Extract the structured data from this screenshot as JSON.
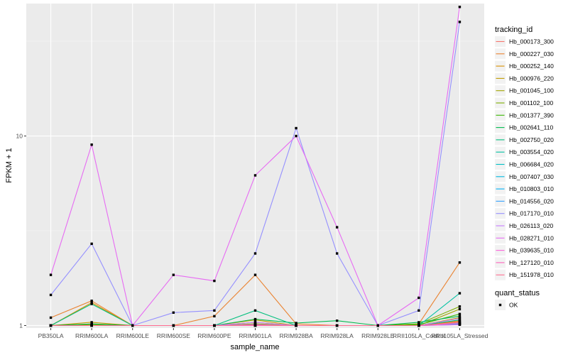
{
  "chart_data": {
    "type": "line",
    "xlabel": "sample_name",
    "ylabel": "FPKM + 1",
    "y_scale": "log10",
    "ylim": [
      0.97,
      50
    ],
    "y_ticks": [
      1,
      10
    ],
    "y_tick_labels": [
      "1",
      "10"
    ],
    "grid": true,
    "legend_placement": "right",
    "categories": [
      "PB350LA",
      "RRIM600LA",
      "RRIM600LE",
      "RRIM600SE",
      "RRIM600PE",
      "RRIM901LA",
      "RRIM928BA",
      "RRIM928LA",
      "RRIM928LE",
      "RRII105LA_Control",
      "RRII105LA_Stressed"
    ],
    "category_labels": [
      "PB350LA",
      "RRIM600LA",
      "RRIM600LE",
      "RRIM600SE",
      "RRIM600PE",
      "RRIM901LA",
      "RRIM928BA",
      "RRIM928LA",
      "RRIM928LE",
      "RRII105LA_Control",
      "RRII105LA_Stressed"
    ],
    "legend_title": "tracking_id",
    "series": [
      {
        "name": "Hb_000173_300",
        "color": "#F8766D",
        "values": [
          1.0,
          1.02,
          1.0,
          1.0,
          1.0,
          1.02,
          1.0,
          1.0,
          1.0,
          1.0,
          1.06
        ]
      },
      {
        "name": "Hb_000227_030",
        "color": "#EA8331",
        "values": [
          1.1,
          1.35,
          1.0,
          1.0,
          1.12,
          1.85,
          1.02,
          1.0,
          1.0,
          1.02,
          2.15
        ]
      },
      {
        "name": "Hb_000252_140",
        "color": "#D89000",
        "values": [
          1.0,
          1.32,
          1.0,
          1.0,
          1.0,
          1.04,
          1.0,
          1.0,
          1.0,
          1.0,
          1.05
        ]
      },
      {
        "name": "Hb_000976_220",
        "color": "#C09B00",
        "values": [
          1.0,
          1.04,
          1.0,
          1.0,
          1.0,
          1.07,
          1.0,
          1.0,
          1.0,
          1.0,
          1.1
        ]
      },
      {
        "name": "Hb_001045_100",
        "color": "#A3A500",
        "values": [
          1.0,
          1.0,
          1.0,
          1.0,
          1.0,
          1.01,
          1.0,
          1.0,
          1.0,
          1.0,
          1.22
        ]
      },
      {
        "name": "Hb_001102_100",
        "color": "#7CAE00",
        "values": [
          1.0,
          1.01,
          1.0,
          1.0,
          1.0,
          1.02,
          1.0,
          1.0,
          1.0,
          1.02,
          1.26
        ]
      },
      {
        "name": "Hb_001377_390",
        "color": "#39B600",
        "values": [
          1.0,
          1.0,
          1.0,
          1.0,
          1.0,
          1.0,
          1.0,
          1.0,
          1.0,
          1.01,
          1.15
        ]
      },
      {
        "name": "Hb_002641_110",
        "color": "#00BB4E",
        "values": [
          1.0,
          1.02,
          1.0,
          1.0,
          1.0,
          1.08,
          1.03,
          1.06,
          1.0,
          1.04,
          1.12
        ]
      },
      {
        "name": "Hb_002750_020",
        "color": "#00BF7D",
        "values": [
          1.0,
          1.3,
          1.0,
          1.0,
          1.0,
          1.2,
          1.0,
          1.0,
          1.0,
          1.0,
          1.07
        ]
      },
      {
        "name": "Hb_003554_020",
        "color": "#00C1A3",
        "values": [
          1.0,
          1.0,
          1.0,
          1.0,
          1.0,
          1.0,
          1.0,
          1.0,
          1.0,
          1.0,
          1.48
        ]
      },
      {
        "name": "Hb_006684_020",
        "color": "#00BFC4",
        "values": [
          1.0,
          1.0,
          1.0,
          1.0,
          1.0,
          1.01,
          1.0,
          1.0,
          1.0,
          1.0,
          1.02
        ]
      },
      {
        "name": "Hb_007407_030",
        "color": "#00BAE0",
        "values": [
          1.0,
          1.0,
          1.0,
          1.0,
          1.0,
          1.0,
          1.0,
          1.0,
          1.0,
          1.0,
          1.03
        ]
      },
      {
        "name": "Hb_010803_010",
        "color": "#00B0F6",
        "values": [
          1.0,
          1.0,
          1.0,
          1.0,
          1.0,
          1.0,
          1.0,
          1.0,
          1.0,
          1.0,
          1.01
        ]
      },
      {
        "name": "Hb_014556_020",
        "color": "#35A2FF",
        "values": [
          1.0,
          1.0,
          1.0,
          1.0,
          1.0,
          1.0,
          1.0,
          1.0,
          1.0,
          1.0,
          1.02
        ]
      },
      {
        "name": "Hb_017170_010",
        "color": "#9590FF",
        "values": [
          1.45,
          2.7,
          1.0,
          1.17,
          1.2,
          2.4,
          11.0,
          2.4,
          1.0,
          1.2,
          40.0
        ]
      },
      {
        "name": "Hb_026113_020",
        "color": "#C77CFF",
        "values": [
          1.0,
          1.0,
          1.0,
          1.0,
          1.0,
          1.04,
          1.0,
          1.0,
          1.0,
          1.0,
          1.09
        ]
      },
      {
        "name": "Hb_028271_010",
        "color": "#E76BF3",
        "values": [
          1.85,
          9.0,
          1.0,
          1.85,
          1.72,
          6.2,
          10.0,
          3.3,
          1.0,
          1.4,
          48.0
        ]
      },
      {
        "name": "Hb_039635_010",
        "color": "#FA62DB",
        "values": [
          1.0,
          1.0,
          1.0,
          1.0,
          1.0,
          1.01,
          1.0,
          1.0,
          1.0,
          1.0,
          1.01
        ]
      },
      {
        "name": "Hb_127120_010",
        "color": "#FF62BC",
        "values": [
          1.0,
          1.0,
          1.0,
          1.0,
          1.0,
          1.0,
          1.0,
          1.0,
          1.0,
          1.0,
          1.03
        ]
      },
      {
        "name": "Hb_151978_010",
        "color": "#FF6C91",
        "values": [
          1.0,
          1.0,
          1.0,
          1.0,
          1.0,
          1.0,
          1.0,
          1.0,
          1.0,
          1.0,
          1.04
        ]
      }
    ],
    "shape_legend": {
      "title": "quant_status",
      "items": [
        {
          "label": "OK",
          "color": "#000000"
        }
      ]
    }
  }
}
